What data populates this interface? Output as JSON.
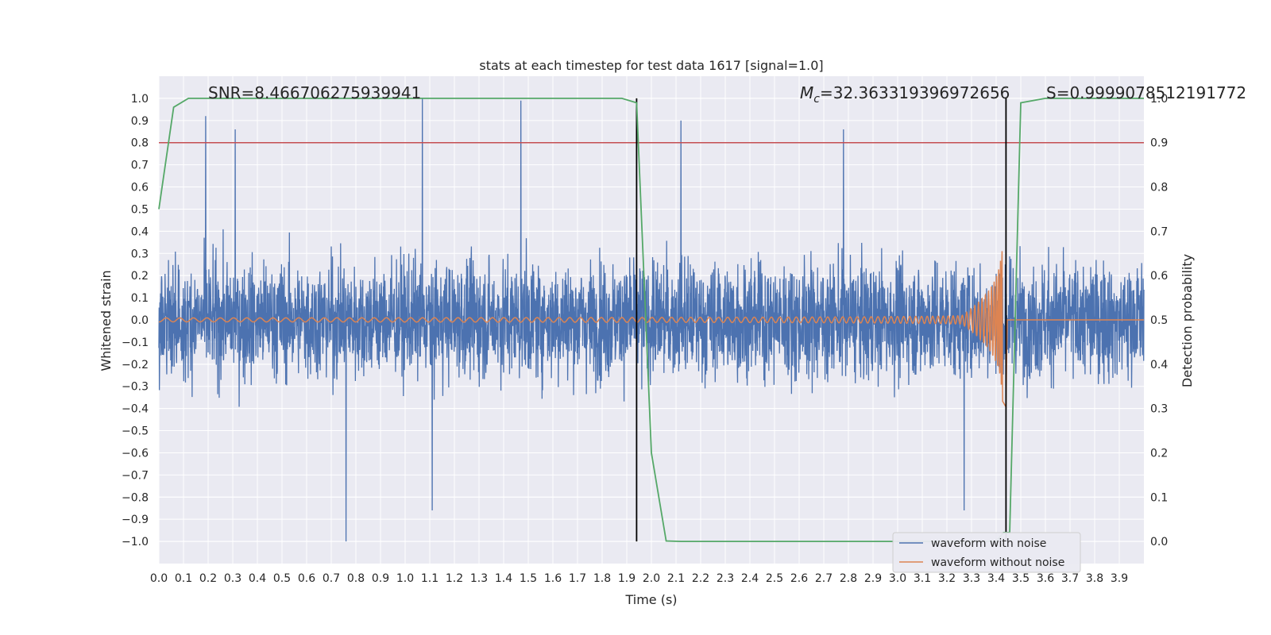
{
  "chart_data": {
    "type": "line",
    "title": "stats at each timestep for test data 1617 [signal=1.0]",
    "xlabel": "Time (s)",
    "ylabel": "Whitened strain",
    "y2label": "Detection probability",
    "xlim": [
      0.0,
      4.0
    ],
    "ylim": [
      -1.1,
      1.1
    ],
    "y2lim": [
      -0.05,
      1.05
    ],
    "x_ticks": [
      0.0,
      0.1,
      0.2,
      0.3,
      0.4,
      0.5,
      0.6,
      0.7,
      0.8,
      0.9,
      1.0,
      1.1,
      1.2,
      1.3,
      1.4,
      1.5,
      1.6,
      1.7,
      1.8,
      1.9,
      2.0,
      2.1,
      2.2,
      2.3,
      2.4,
      2.5,
      2.6,
      2.7,
      2.8,
      2.9,
      3.0,
      3.1,
      3.2,
      3.3,
      3.4,
      3.5,
      3.6,
      3.7,
      3.8,
      3.9
    ],
    "x_tick_labels": [
      "0.0",
      "0.1",
      "0.2",
      "0.3",
      "0.4",
      "0.5",
      "0.6",
      "0.7",
      "0.8",
      "0.9",
      "1.0",
      "1.1",
      "1.2",
      "1.3",
      "1.4",
      "1.5",
      "1.6",
      "1.7",
      "1.8",
      "1.9",
      "2.0",
      "2.1",
      "2.2",
      "2.3",
      "2.4",
      "2.5",
      "2.6",
      "2.7",
      "2.8",
      "2.9",
      "3.0",
      "3.1",
      "3.2",
      "3.3",
      "3.4",
      "3.5",
      "3.6",
      "3.7",
      "3.8",
      "3.9"
    ],
    "y_ticks": [
      1.0,
      0.9,
      0.8,
      0.7,
      0.6,
      0.5,
      0.4,
      0.3,
      0.2,
      0.1,
      0.0,
      -0.1,
      -0.2,
      -0.3,
      -0.4,
      -0.5,
      -0.6,
      -0.7,
      -0.8,
      -0.9,
      -1.0
    ],
    "y_tick_labels": [
      "1.0",
      "0.9",
      "0.8",
      "0.7",
      "0.6",
      "0.5",
      "0.4",
      "0.3",
      "0.2",
      "0.1",
      "0.0",
      "−0.1",
      "−0.2",
      "−0.3",
      "−0.4",
      "−0.5",
      "−0.6",
      "−0.7",
      "−0.8",
      "−0.9",
      "−1.0"
    ],
    "y2_ticks": [
      1.0,
      0.9,
      0.8,
      0.7,
      0.6,
      0.5,
      0.4,
      0.3,
      0.2,
      0.1,
      0.0
    ],
    "y2_tick_labels": [
      "1.0",
      "0.9",
      "0.8",
      "0.7",
      "0.6",
      "0.5",
      "0.4",
      "0.3",
      "0.2",
      "0.1",
      "0.0"
    ],
    "grid": true,
    "legend_position": "lower-right",
    "series": [
      {
        "name": "waveform with noise",
        "color": "#4c72b0",
        "kind": "noisy-strain",
        "duration": 4.0,
        "typical_amplitude": 0.4,
        "notable_peaks": [
          {
            "x": 0.19,
            "y": 0.92
          },
          {
            "x": 0.31,
            "y": 0.86
          },
          {
            "x": 0.76,
            "y": -1.0
          },
          {
            "x": 1.07,
            "y": 1.0
          },
          {
            "x": 1.11,
            "y": -0.86
          },
          {
            "x": 1.47,
            "y": 0.99
          },
          {
            "x": 2.12,
            "y": 0.9
          },
          {
            "x": 2.78,
            "y": 0.86
          },
          {
            "x": 3.27,
            "y": -0.86
          }
        ]
      },
      {
        "name": "waveform without noise",
        "color": "#dd8452",
        "kind": "chirp",
        "start_amplitude": 0.005,
        "peak_amplitude": 0.5,
        "merger_time": 3.41,
        "end_time": 3.44
      },
      {
        "name": "detection probability",
        "color": "#55a868",
        "axis": "right",
        "x": [
          0.0,
          0.06,
          0.12,
          0.2,
          0.5,
          1.0,
          1.5,
          1.88,
          1.94,
          2.0,
          2.06,
          2.12,
          2.5,
          3.0,
          3.4,
          3.43,
          3.455,
          3.5,
          3.6,
          4.0
        ],
        "y": [
          0.75,
          0.98,
          1.0,
          1.0,
          1.0,
          1.0,
          1.0,
          1.0,
          0.99,
          0.2,
          0.001,
          0.0,
          0.0,
          0.0,
          0.0,
          0.02,
          0.02,
          0.99,
          1.0,
          1.0
        ]
      }
    ],
    "threshold": {
      "axis": "right",
      "y": 0.9,
      "color": "#c44e52"
    },
    "vertical_markers": [
      {
        "x": 1.94
      },
      {
        "x": 3.44
      }
    ],
    "annotations": {
      "snr": "SNR=8.466706275939941",
      "mc_symbol": "M",
      "mc_sub": "c",
      "mc_value": "=32.363319396972656",
      "s": "S=0.9999078512191772"
    }
  }
}
